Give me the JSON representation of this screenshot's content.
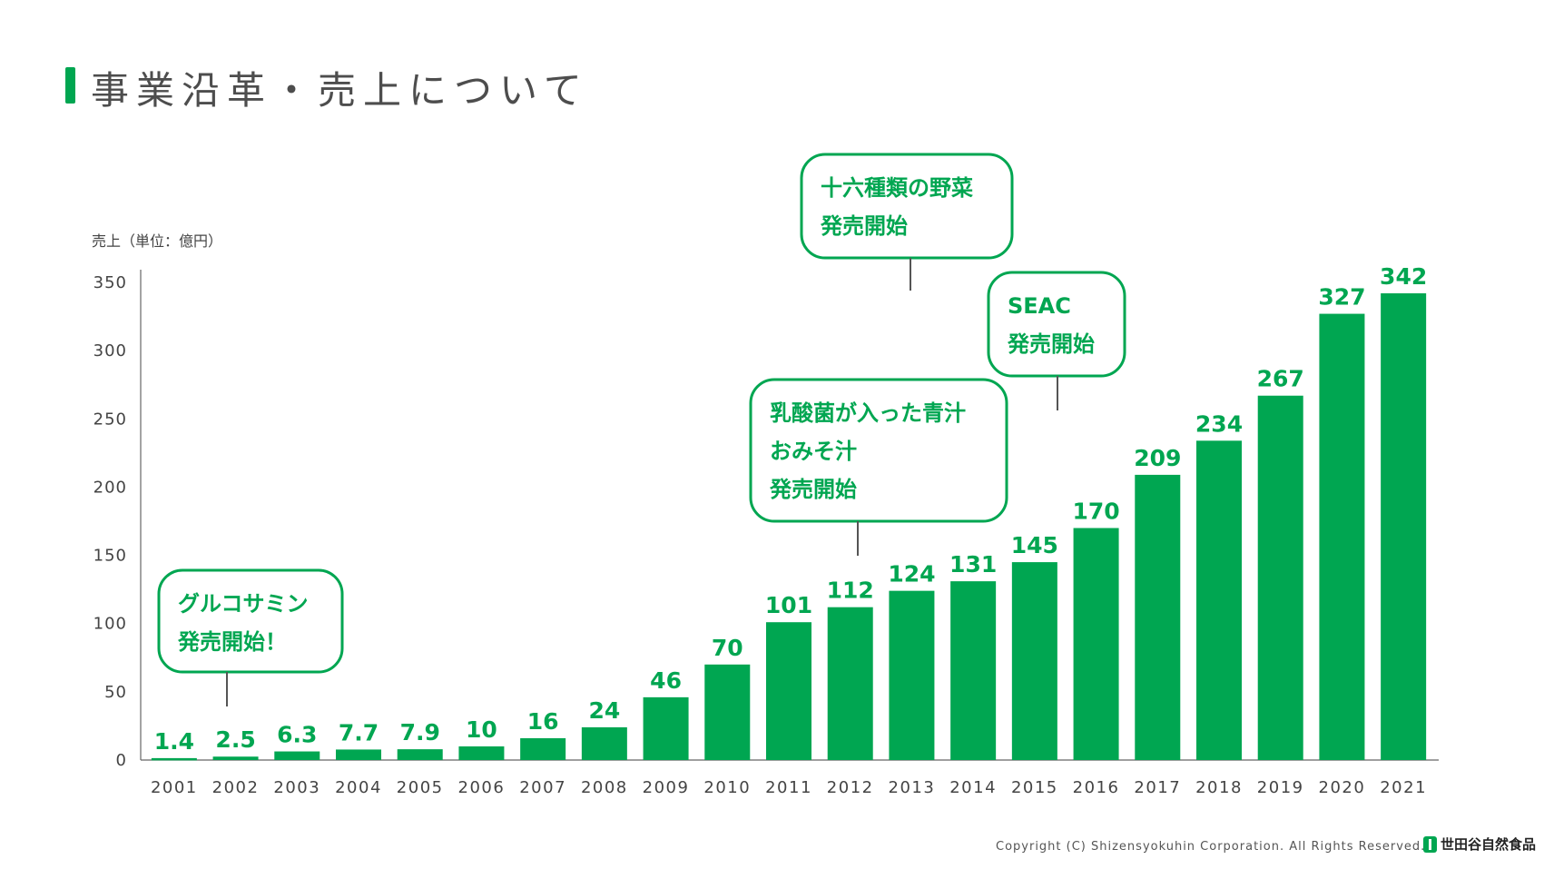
{
  "page": {
    "title": "事業沿革・売上について",
    "copyright": "Copyright (C) Shizensyokuhin Corporation. All Rights Reserved.",
    "logo_text": "世田谷自然食品"
  },
  "colors": {
    "accent": "#00a651",
    "axis_text": "#444444",
    "text_gray": "#4d4d4d"
  },
  "chart_data": {
    "type": "bar",
    "ylabel": "売上（単位：億円）",
    "ylim": [
      0,
      350
    ],
    "yticks": [
      0,
      50,
      100,
      150,
      200,
      250,
      300,
      350
    ],
    "categories": [
      "2001",
      "2002",
      "2003",
      "2004",
      "2005",
      "2006",
      "2007",
      "2008",
      "2009",
      "2010",
      "2011",
      "2012",
      "2013",
      "2014",
      "2015",
      "2016",
      "2017",
      "2018",
      "2019",
      "2020",
      "2021"
    ],
    "values": [
      1.4,
      2.5,
      6.3,
      7.7,
      7.9,
      10,
      16,
      24,
      46,
      70,
      101,
      112,
      124,
      131,
      145,
      170,
      209,
      234,
      267,
      327,
      342
    ],
    "value_labels": [
      "1.4",
      "2.5",
      "6.3",
      "7.7",
      "7.9",
      "10",
      "16",
      "24",
      "46",
      "70",
      "101",
      "112",
      "124",
      "131",
      "145",
      "170",
      "209",
      "234",
      "267",
      "327",
      "342"
    ],
    "annotations": [
      {
        "category": "2002",
        "lines": [
          "グルコサミン",
          "発売開始！"
        ]
      },
      {
        "category": "2012",
        "lines": [
          "乳酸菌が入った青汁",
          "おみそ汁",
          "発売開始"
        ]
      },
      {
        "category": "2013",
        "lines": [
          "十六種類の野菜",
          "発売開始"
        ]
      },
      {
        "category": "2015",
        "lines": [
          "SEAC",
          "発売開始"
        ]
      }
    ]
  }
}
